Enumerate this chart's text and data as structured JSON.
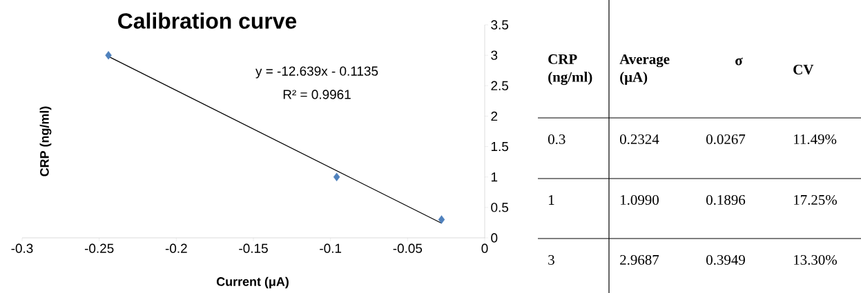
{
  "chart_data": [
    {
      "type": "scatter",
      "title": "Calibration curve",
      "xlabel": "Current (μA)",
      "ylabel": "CRP (ng/ml)",
      "annotations": [
        "y = -12.639x - 0.1135",
        "R² = 0.9961"
      ],
      "xlim": [
        -0.3,
        0
      ],
      "ylim": [
        0,
        3.5
      ],
      "xticks": [
        -0.3,
        -0.25,
        -0.2,
        -0.15,
        -0.1,
        -0.05,
        0
      ],
      "yticks": [
        0,
        0.5,
        1,
        1.5,
        2,
        2.5,
        3,
        3.5
      ],
      "marker": "diamond",
      "series": [
        {
          "type": "scatter",
          "color": "#4f81bd",
          "x": [
            -0.244,
            -0.096,
            -0.028
          ],
          "values": [
            3,
            1,
            0.3
          ]
        },
        {
          "type": "line",
          "color": "#000000",
          "marker": "none",
          "x": [
            -0.244,
            -0.028
          ],
          "values": [
            2.98,
            0.24
          ]
        }
      ]
    },
    {
      "type": "other",
      "annotations": [
        "**CRP (ng/ml)**",
        "**Average (μA)**",
        "**σ**",
        "**CV**",
        "0.3",
        "0.2324",
        "0.0267",
        "11.49%",
        "1",
        "1.0990",
        "0.1896",
        "17.25%",
        "3",
        "2.9687",
        "0.3949",
        "13.30%"
      ]
    }
  ]
}
